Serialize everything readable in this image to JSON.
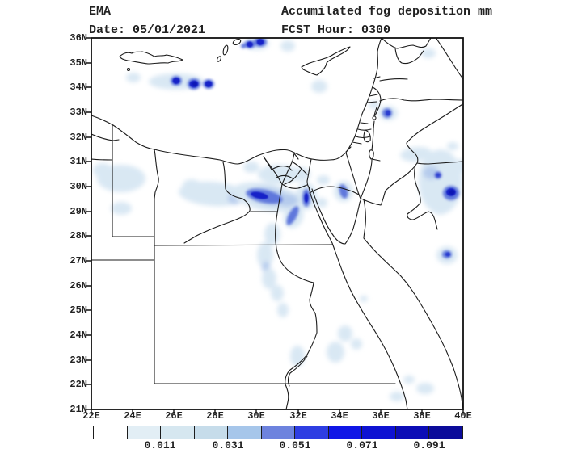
{
  "header": {
    "agency": "EMA",
    "title": "Accumilated fog deposition mm",
    "date": "Date: 05/01/2021",
    "fcst": "FCST Hour: 0300"
  },
  "map": {
    "lat_labels": [
      "36N",
      "35N",
      "34N",
      "33N",
      "32N",
      "31N",
      "30N",
      "29N",
      "28N",
      "27N",
      "26N",
      "25N",
      "24N",
      "23N",
      "22N",
      "21N"
    ],
    "lon_labels": [
      "22E",
      "24E",
      "26E",
      "28E",
      "30E",
      "32E",
      "34E",
      "36E",
      "38E",
      "40E"
    ]
  },
  "colorbar": {
    "tick_labels": [
      "0.011",
      "0.031",
      "0.051",
      "0.071",
      "0.091"
    ],
    "segment_colors": [
      "#ffffff",
      "#e2eef5",
      "#d6e7f0",
      "#c6dcea",
      "#a6c6ea",
      "#6d83de",
      "#2e3ee2",
      "#1016e6",
      "#0e12d2",
      "#0c0db6",
      "#0b0b9a"
    ],
    "units": "mm"
  }
}
